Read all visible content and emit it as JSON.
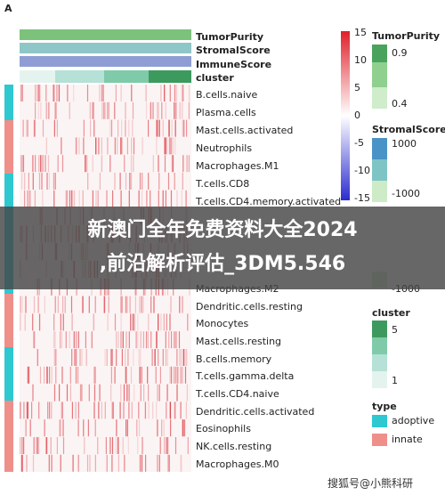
{
  "panel_label": "A",
  "annotations": [
    "TumorPurity",
    "StromalScore",
    "ImmuneScore",
    "cluster"
  ],
  "rows": [
    {
      "label": "B.cells.naive",
      "y": 0
    },
    {
      "label": "Plasma.cells"
    },
    {
      "label": "Mast.cells.activated"
    },
    {
      "label": "Neutrophils"
    },
    {
      "label": "Macrophages.M1"
    },
    {
      "label": "T.cells.CD8"
    },
    {
      "label": "T.cells.CD4.memory.activated"
    },
    {
      "label": "Macrophages.M2"
    },
    {
      "label": "Dendritic.cells.resting"
    },
    {
      "label": "Monocytes"
    },
    {
      "label": "Mast.cells.resting"
    },
    {
      "label": "B.cells.memory"
    },
    {
      "label": "T.cells.gamma.delta"
    },
    {
      "label": "T.cells.CD4.naive"
    },
    {
      "label": "Dendritic.cells.activated"
    },
    {
      "label": "Eosinophils"
    },
    {
      "label": "NK.cells.resting"
    },
    {
      "label": "Macrophages.M0"
    }
  ],
  "scale_ticks": [
    "15",
    "10",
    "5",
    "0",
    "-5",
    "-10",
    "-15"
  ],
  "legends": {
    "tumor": {
      "title": "TumorPurity",
      "high": "0.9",
      "low": "0.4"
    },
    "stromal": {
      "title": "StromalScore",
      "high": "1000",
      "low": "-1000"
    },
    "immune": {
      "low": "-1000"
    },
    "cluster": {
      "title": "cluster",
      "high": "5",
      "low": "1"
    },
    "type": {
      "title": "type",
      "items": [
        "adoptive",
        "innate"
      ]
    }
  },
  "banner": {
    "line1": "新澳门全年免费资料大全2024",
    "line2": ",前沿解析评估_3DM5.546"
  },
  "watermark": "搜狐号@小熊科研"
}
